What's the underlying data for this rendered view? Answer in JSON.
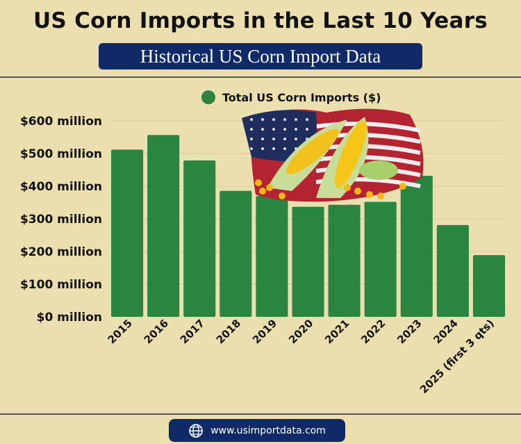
{
  "header": {
    "title": "US Corn Imports in the Last 10 Years",
    "subtitle": "Historical US Corn Import Data"
  },
  "footer": {
    "url": "www.usimportdata.com",
    "icon": "globe-icon"
  },
  "colors": {
    "bar": "#2a8540",
    "navy": "#0f2a66",
    "background": "#ebdfb0"
  },
  "chart_data": {
    "type": "bar",
    "title": "",
    "legend": {
      "entries": [
        "Total US Corn Imports ($)"
      ],
      "placement": "top"
    },
    "categories": [
      "2015",
      "2016",
      "2017",
      "2018",
      "2019",
      "2020",
      "2021",
      "2022",
      "2023",
      "2024",
      "2025 (first 3 qts)"
    ],
    "series": [
      {
        "name": "Total US Corn Imports ($)",
        "values": [
          512,
          557,
          479,
          386,
          370,
          337,
          343,
          352,
          432,
          281,
          189
        ]
      }
    ],
    "unit": "million USD",
    "yticks": [
      "$0 million",
      "$100 million",
      "$200 million",
      "$300 million",
      "$400 million",
      "$500 million",
      "$600 million"
    ],
    "ylim": [
      0,
      600
    ],
    "grid": true,
    "decoration": "corn on american flag image"
  }
}
